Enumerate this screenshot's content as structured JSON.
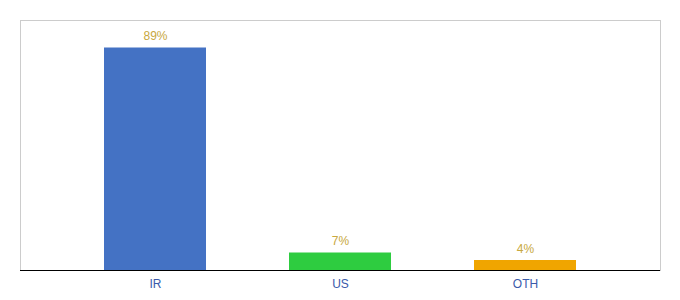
{
  "chart_data": {
    "type": "bar",
    "categories": [
      "IR",
      "US",
      "OTH"
    ],
    "values": [
      89,
      7,
      4
    ],
    "value_labels": [
      "89%",
      "7%",
      "4%"
    ],
    "data_labels": true,
    "colors": [
      "#4472c4",
      "#2ecc40",
      "#f0a500"
    ],
    "ylim": [
      0,
      100
    ],
    "tick_labels": "x",
    "grid": false
  }
}
